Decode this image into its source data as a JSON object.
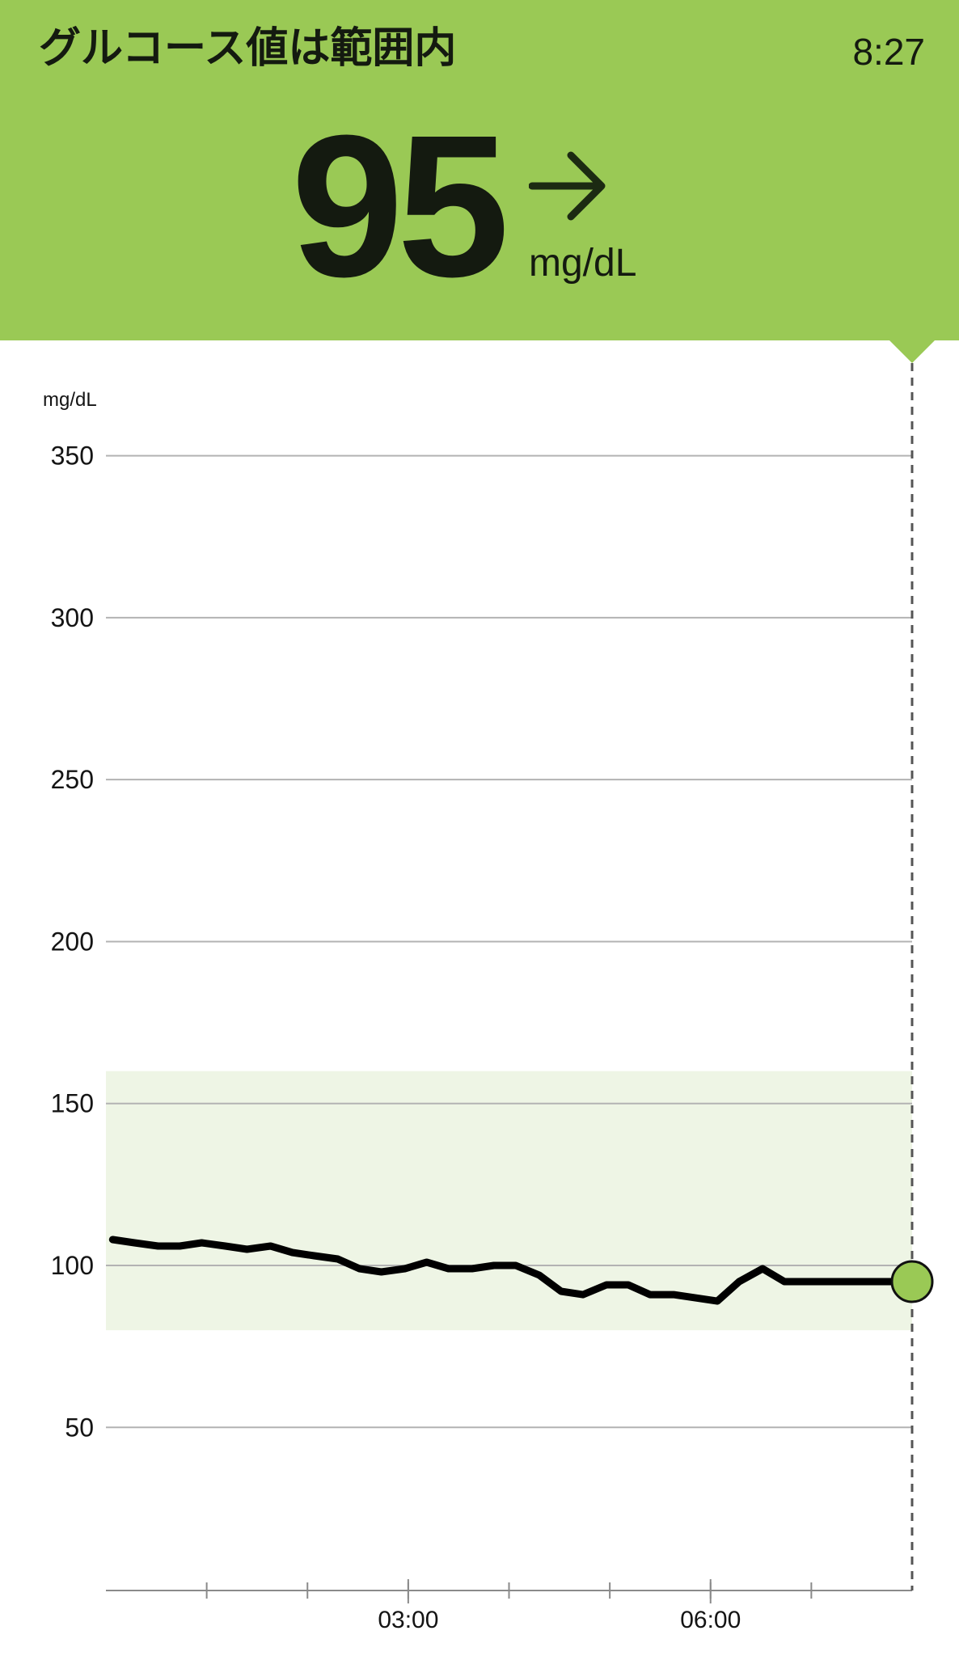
{
  "header": {
    "status_title": "グルコース値は範囲内",
    "time": "8:27",
    "reading_value": "95",
    "reading_unit": "mg/dL",
    "trend_icon": "arrow-right-icon",
    "background_color": "#9ac955"
  },
  "chart_data": {
    "type": "line",
    "ylabel": "mg/dL",
    "ylim": [
      0,
      350
    ],
    "yticks": [
      50,
      100,
      150,
      200,
      250,
      300,
      350
    ],
    "xlim": [
      "00:00",
      "08:00"
    ],
    "xtick_labels": [
      {
        "time": "03:00",
        "label": "03:00"
      },
      {
        "time": "06:00",
        "label": "06:00"
      }
    ],
    "minor_ticks_every_hours": 1,
    "target_range": [
      80,
      160
    ],
    "target_range_color": "#eef5e5",
    "line_color": "#000000",
    "current_marker_color": "#9ac955",
    "grid": true,
    "series": [
      {
        "x": [
          "00:04",
          "00:17",
          "00:31",
          "00:44",
          "00:57",
          "01:11",
          "01:24",
          "01:38",
          "01:51",
          "02:04",
          "02:18",
          "02:31",
          "02:44",
          "02:58",
          "03:11",
          "03:24",
          "03:38",
          "03:51",
          "04:04",
          "04:18",
          "04:31",
          "04:44",
          "04:58",
          "05:11",
          "05:24",
          "05:38",
          "05:51",
          "06:04",
          "06:17",
          "06:31",
          "06:44",
          "06:58",
          "07:11",
          "07:24",
          "07:38",
          "07:51",
          "08:04"
        ],
        "y": [
          108,
          107,
          106,
          106,
          107,
          106,
          105,
          106,
          104,
          103,
          102,
          99,
          98,
          99,
          101,
          99,
          99,
          100,
          100,
          97,
          92,
          91,
          94,
          94,
          91,
          91,
          90,
          89,
          95,
          99,
          95,
          95,
          95,
          95,
          95,
          95,
          95
        ]
      }
    ],
    "current_reading": {
      "time": "08:00",
      "value": 95
    }
  }
}
